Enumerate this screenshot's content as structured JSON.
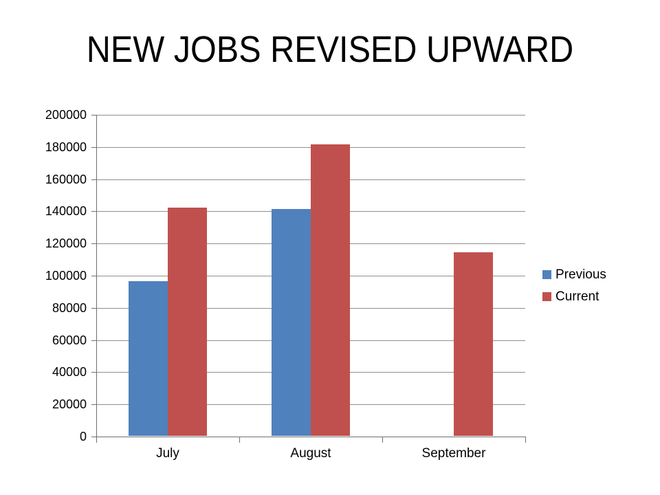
{
  "chart_data": {
    "type": "bar",
    "title": "NEW JOBS REVISED UPWARD",
    "categories": [
      "July",
      "August",
      "September"
    ],
    "series": [
      {
        "name": "Previous",
        "color": "#4F81BD",
        "values": [
          96000,
          141000,
          0
        ]
      },
      {
        "name": "Current",
        "color": "#C0504D",
        "values": [
          142000,
          181000,
          114000
        ]
      }
    ],
    "ylim": [
      0,
      200000
    ],
    "ytick_step": 20000,
    "yticks": [
      {
        "value": 0,
        "label": "0"
      },
      {
        "value": 20000,
        "label": "20000"
      },
      {
        "value": 40000,
        "label": "40000"
      },
      {
        "value": 60000,
        "label": "60000"
      },
      {
        "value": 80000,
        "label": "80000"
      },
      {
        "value": 100000,
        "label": "100000"
      },
      {
        "value": 120000,
        "label": "120000"
      },
      {
        "value": 140000,
        "label": "140000"
      },
      {
        "value": 160000,
        "label": "160000"
      },
      {
        "value": 180000,
        "label": "180000"
      },
      {
        "value": 200000,
        "label": "200000"
      }
    ],
    "xlabel": "",
    "ylabel": "",
    "grid": "horizontal",
    "legend_position": "right",
    "colors": {
      "background": "#FFFFFF",
      "text": "#000000",
      "axis_line": "#6F6F6F",
      "gridline": "#8F8F8F"
    }
  }
}
